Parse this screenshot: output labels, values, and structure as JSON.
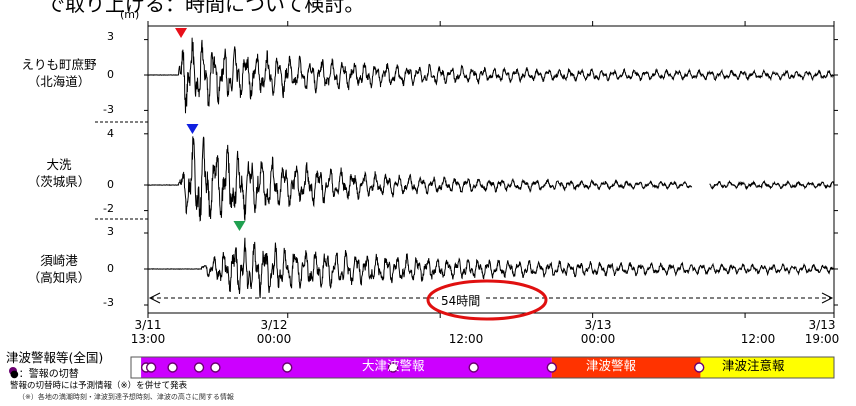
{
  "header_fragment": "で取り上げる：時間について検討。",
  "y_unit": "(m)",
  "chart_data": {
    "type": "line",
    "panels": [
      {
        "station": "えりも町庶野",
        "region": "（北海道）",
        "ticks": [
          "3",
          "0",
          "-3"
        ],
        "ylim": [
          -4.2,
          4.2
        ],
        "peak_marker": "red"
      },
      {
        "station": "大洗",
        "region": "（茨城県）",
        "ticks": [
          "4",
          "0",
          "-2"
        ],
        "ylim": [
          -3.2,
          5.2
        ],
        "peak_marker": "blue"
      },
      {
        "station": "須崎港",
        "region": "（高知県）",
        "ticks": [
          "3",
          "0",
          "-3"
        ],
        "ylim": [
          -4.0,
          4.0
        ],
        "peak_marker": "green"
      }
    ],
    "x_ticks": [
      {
        "date": "3/11",
        "time": "13:00",
        "hour": 0
      },
      {
        "date": "3/12",
        "time": "00:00",
        "hour": 11
      },
      {
        "date": "",
        "time": "12:00",
        "hour": 23
      },
      {
        "date": "3/13",
        "time": "00:00",
        "hour": 35
      },
      {
        "date": "",
        "time": "12:00",
        "hour": 47
      },
      {
        "date": "3/13",
        "time": "19:00",
        "hour": 54
      }
    ],
    "xlim_hours": [
      0,
      54
    ],
    "duration_label": "54時間",
    "waves": [
      {
        "station": "えりも町庶野",
        "onset_h": 2.4,
        "peak_h": 2.6,
        "amp_max": 3.4,
        "decay_h": 11,
        "floor": 0.35,
        "period_h": 0.85,
        "gap": null
      },
      {
        "station": "大洗",
        "onset_h": 2.4,
        "peak_h": 3.5,
        "amp_max": 4.1,
        "decay_h": 9,
        "floor": 0.25,
        "period_h": 0.9,
        "gap": [
          42.8,
          44.2
        ]
      },
      {
        "station": "須崎港",
        "onset_h": 4.2,
        "peak_h": 7.2,
        "amp_max": 2.6,
        "decay_h": 14,
        "floor": 0.3,
        "period_h": 0.8,
        "gap": null
      }
    ]
  },
  "legend": {
    "title": "津波警報等(全国)",
    "switch_marker": "●：警報の切替",
    "note1": "警報の切替時には予測情報（※）を併せて発表",
    "note2": "（※）各地の満潮時刻・津波到達予想時刻、津波の高さに関する情報"
  },
  "warning_bar": {
    "segments": [
      {
        "label": "",
        "start_h": 0,
        "end_h": 0.8,
        "color": "#ffffff"
      },
      {
        "label": "大津波警報",
        "start_h": 0.8,
        "end_h": 33.4,
        "color": "#cc00ff"
      },
      {
        "label": "津波警報",
        "start_h": 33.4,
        "end_h": 45.2,
        "color": "#ff3300"
      },
      {
        "label": "津波注意報",
        "start_h": 45.2,
        "end_h": 55.8,
        "color": "#ffff00"
      }
    ],
    "switch_times_h": [
      1.2,
      1.6,
      3.3,
      5.4,
      6.7,
      12.4,
      20.8,
      27.2,
      33.4,
      45.1
    ]
  },
  "colors": {
    "red": "#e8101a",
    "blue": "#1020e0",
    "green": "#20a050",
    "highlight": "#e01010"
  }
}
